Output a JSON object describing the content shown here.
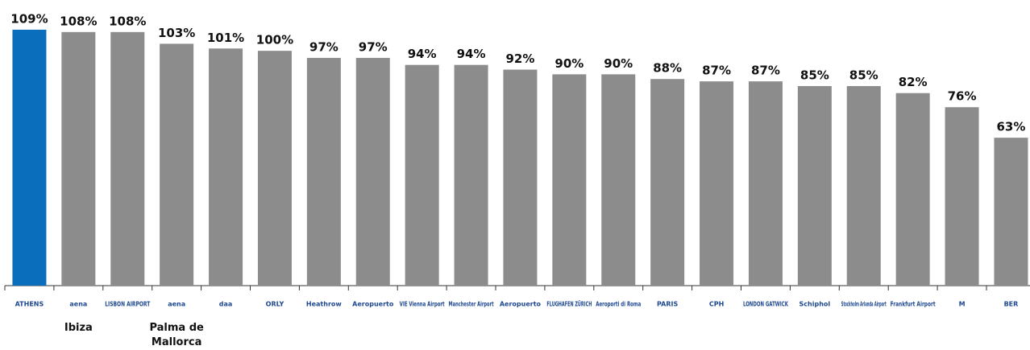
{
  "chart_data": {
    "type": "bar",
    "categories": [
      "ATHENS",
      "aena",
      "LISBON AIRPORT",
      "aena",
      "daa",
      "ORLY",
      "Heathrow",
      "Aeropuerto",
      "VIE Vienna Airport",
      "Manchester Airport",
      "Aeropuerto",
      "FLUGHAFEN ZÜRICH",
      "Aeroporti di Roma",
      "PARIS",
      "CPH",
      "LONDON GATWICK",
      "Schiphol",
      "Stockholm Arlanda Airport",
      "Frankfurt Airport",
      "M",
      "BER"
    ],
    "sublabels": [
      null,
      "Ibiza",
      null,
      "Palma de Mallorca",
      null,
      null,
      null,
      null,
      null,
      null,
      null,
      null,
      null,
      null,
      null,
      null,
      null,
      null,
      null,
      null,
      null
    ],
    "values": [
      109,
      108,
      108,
      103,
      101,
      100,
      97,
      97,
      94,
      94,
      92,
      90,
      90,
      88,
      87,
      87,
      85,
      85,
      82,
      76,
      63
    ],
    "value_labels": [
      "109%",
      "108%",
      "108%",
      "103%",
      "101%",
      "100%",
      "97%",
      "97%",
      "94%",
      "94%",
      "92%",
      "90%",
      "90%",
      "88%",
      "87%",
      "87%",
      "85%",
      "85%",
      "82%",
      "76%",
      "63%"
    ],
    "colors": [
      "#0a6ebd",
      "#8c8c8c",
      "#8c8c8c",
      "#8c8c8c",
      "#8c8c8c",
      "#8c8c8c",
      "#8c8c8c",
      "#8c8c8c",
      "#8c8c8c",
      "#8c8c8c",
      "#8c8c8c",
      "#8c8c8c",
      "#8c8c8c",
      "#8c8c8c",
      "#8c8c8c",
      "#8c8c8c",
      "#8c8c8c",
      "#8c8c8c",
      "#8c8c8c",
      "#8c8c8c",
      "#8c8c8c"
    ],
    "ylim": [
      0,
      110
    ]
  }
}
